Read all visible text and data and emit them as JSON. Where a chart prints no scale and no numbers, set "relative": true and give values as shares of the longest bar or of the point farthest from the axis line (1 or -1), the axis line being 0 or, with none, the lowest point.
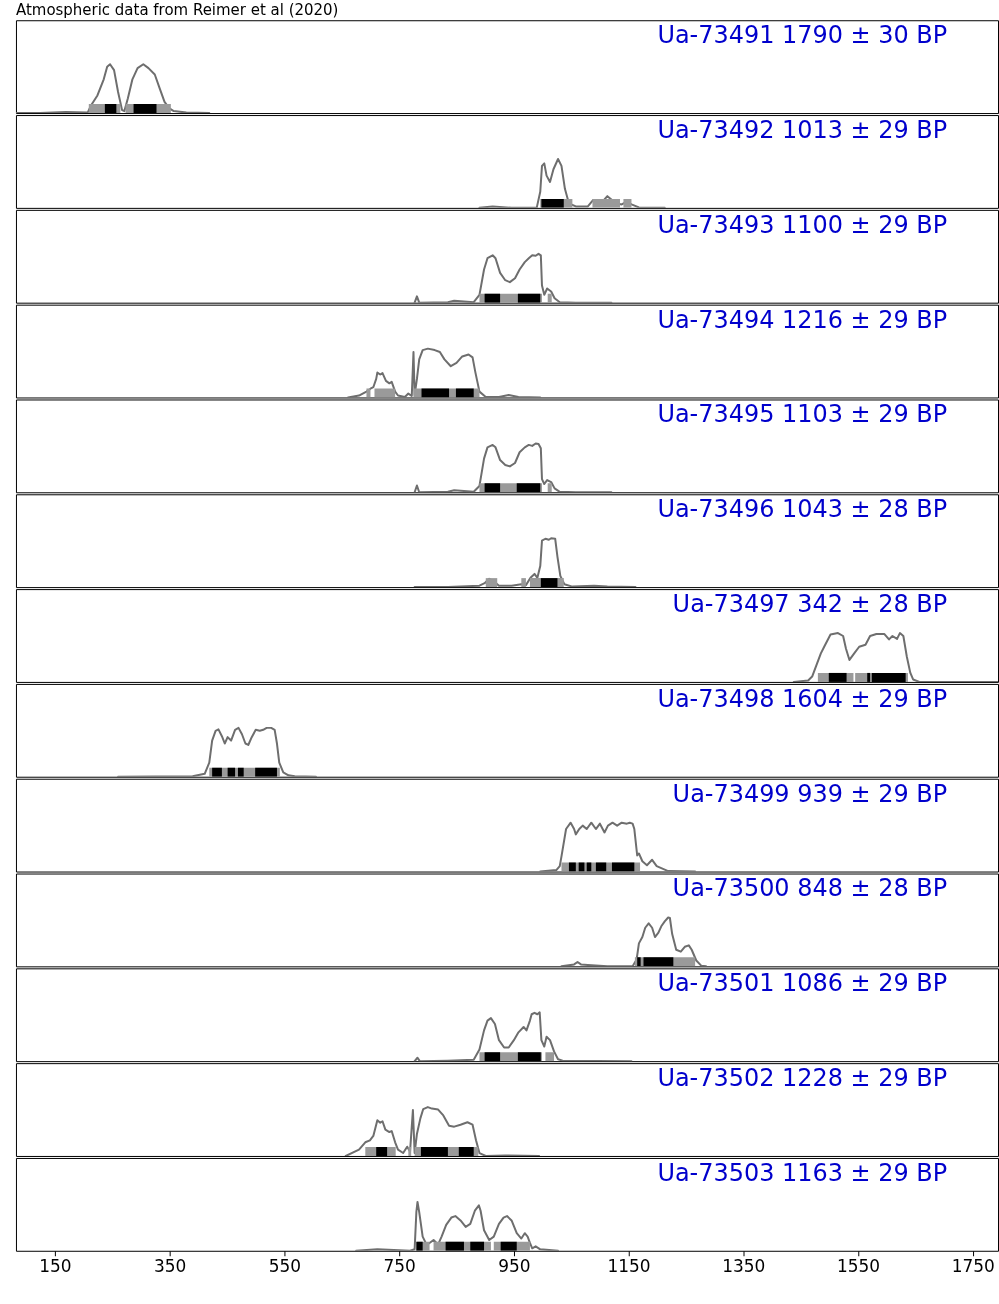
{
  "chart_data": [
    {
      "type": "line",
      "title": "Ua-73491 1790 ± 30 BP",
      "annotations": [
        "Atmospheric data from Reimer et al (2020)"
      ],
      "relative": true,
      "xlim": [
        82,
        1794
      ],
      "tick_labels": false,
      "series": [
        {
          "color": "#6e6e6e",
          "x": [
            82,
            124,
            169,
            207,
            213,
            224,
            235,
            241,
            246,
            253,
            260,
            267,
            271,
            277,
            285,
            294,
            304,
            313,
            324,
            333,
            341,
            349,
            357,
            379,
            419
          ],
          "values": [
            0,
            0,
            0.02,
            0.01,
            0.16,
            0.36,
            0.69,
            0.95,
            1.0,
            0.88,
            0.43,
            0.06,
            0.04,
            0.3,
            0.69,
            0.92,
            1.0,
            0.92,
            0.79,
            0.49,
            0.23,
            0.1,
            0.04,
            0.01,
            0
          ]
        }
      ],
      "bands": [
        {
          "axis": "x",
          "from": 209,
          "to": 264,
          "color": "#9a9a9a"
        },
        {
          "axis": "x",
          "from": 273,
          "to": 352,
          "color": "#9a9a9a"
        },
        {
          "axis": "x",
          "from": 237,
          "to": 257,
          "color": "#000000"
        },
        {
          "axis": "x",
          "from": 287,
          "to": 327,
          "color": "#000000"
        }
      ]
    },
    {
      "type": "line",
      "title": "Ua-73492 1013 ± 29 BP",
      "relative": true,
      "xlim": [
        82,
        1794
      ],
      "tick_labels": false,
      "series": [
        {
          "color": "#6e6e6e",
          "x": [
            890,
            913,
            946,
            990,
            996,
            999,
            1003,
            1007,
            1013,
            1019,
            1027,
            1033,
            1039,
            1046,
            1058,
            1079,
            1088,
            1096,
            1104,
            1113,
            1121,
            1130,
            1138,
            1147,
            1155,
            1168,
            1213
          ],
          "values": [
            0,
            0.03,
            0,
            0.01,
            0.33,
            0.86,
            0.91,
            0.66,
            0.53,
            0.79,
            1.0,
            0.86,
            0.39,
            0.09,
            0.03,
            0.03,
            0.16,
            0.07,
            0.12,
            0.24,
            0.16,
            0.09,
            0.07,
            0.13,
            0.07,
            0.01,
            0
          ]
        }
      ],
      "bands": [
        {
          "axis": "x",
          "from": 996,
          "to": 1052,
          "color": "#9a9a9a"
        },
        {
          "axis": "x",
          "from": 1087,
          "to": 1135,
          "color": "#9a9a9a"
        },
        {
          "axis": "x",
          "from": 1141,
          "to": 1155,
          "color": "#9a9a9a"
        },
        {
          "axis": "x",
          "from": 998,
          "to": 1037,
          "color": "#000000"
        }
      ]
    },
    {
      "type": "line",
      "title": "Ua-73493 1100 ± 29 BP",
      "relative": true,
      "xlim": [
        82,
        1794
      ],
      "tick_labels": false,
      "series": [
        {
          "color": "#6e6e6e",
          "x": [
            777,
            781,
            785,
            835,
            846,
            880,
            890,
            898,
            904,
            913,
            918,
            926,
            935,
            943,
            952,
            960,
            969,
            976,
            982,
            988,
            993,
            997,
            999,
            1003,
            1008,
            1015,
            1021,
            1030,
            1058,
            1120
          ],
          "values": [
            0,
            0.13,
            0,
            0.01,
            0.04,
            0.01,
            0.16,
            0.68,
            0.91,
            0.97,
            0.91,
            0.61,
            0.46,
            0.42,
            0.5,
            0.68,
            0.83,
            0.91,
            0.97,
            0.96,
            1.0,
            0.97,
            0.35,
            0.16,
            0.29,
            0.23,
            0.09,
            0.01,
            0,
            0
          ]
        }
      ],
      "bands": [
        {
          "axis": "x",
          "from": 890,
          "to": 999,
          "color": "#9a9a9a"
        },
        {
          "axis": "x",
          "from": 1009,
          "to": 1016,
          "color": "#9a9a9a"
        },
        {
          "axis": "x",
          "from": 899,
          "to": 926,
          "color": "#000000"
        },
        {
          "axis": "x",
          "from": 957,
          "to": 996,
          "color": "#000000"
        }
      ]
    },
    {
      "type": "line",
      "title": "Ua-73494 1216 ± 29 BP",
      "relative": true,
      "xlim": [
        82,
        1794
      ],
      "tick_labels": false,
      "series": [
        {
          "color": "#6e6e6e",
          "x": [
            661,
            680,
            693,
            700,
            705,
            710,
            712,
            717,
            721,
            727,
            733,
            737,
            743,
            748,
            760,
            766,
            772,
            775,
            777,
            781,
            785,
            791,
            800,
            812,
            821,
            829,
            840,
            850,
            860,
            871,
            878,
            883,
            890,
            901,
            924,
            941,
            958,
            996
          ],
          "values": [
            0,
            0.04,
            0.12,
            0.18,
            0.21,
            0.38,
            0.51,
            0.47,
            0.5,
            0.34,
            0.29,
            0.32,
            0.12,
            0.04,
            0.01,
            0.08,
            0.03,
            0.93,
            0.05,
            0.38,
            0.78,
            0.97,
            1.0,
            0.97,
            0.93,
            0.78,
            0.64,
            0.71,
            0.84,
            0.88,
            0.82,
            0.51,
            0.12,
            0.01,
            0.01,
            0.05,
            0.01,
            0
          ]
        }
      ],
      "bands": [
        {
          "axis": "x",
          "from": 693,
          "to": 700,
          "color": "#9a9a9a"
        },
        {
          "axis": "x",
          "from": 707,
          "to": 743,
          "color": "#9a9a9a"
        },
        {
          "axis": "x",
          "from": 775,
          "to": 890,
          "color": "#9a9a9a"
        },
        {
          "axis": "x",
          "from": 789,
          "to": 837,
          "color": "#000000"
        },
        {
          "axis": "x",
          "from": 849,
          "to": 880,
          "color": "#000000"
        }
      ]
    },
    {
      "type": "line",
      "title": "Ua-73495 1103 ± 29 BP",
      "relative": true,
      "xlim": [
        82,
        1794
      ],
      "tick_labels": false,
      "series": [
        {
          "color": "#6e6e6e",
          "x": [
            777,
            781,
            785,
            835,
            846,
            880,
            890,
            898,
            904,
            913,
            918,
            926,
            935,
            943,
            952,
            960,
            969,
            976,
            982,
            988,
            993,
            997,
            999,
            1003,
            1008,
            1015,
            1021,
            1030,
            1058,
            1120
          ],
          "values": [
            0,
            0.14,
            0,
            0.01,
            0.04,
            0.01,
            0.13,
            0.69,
            0.92,
            0.97,
            0.92,
            0.66,
            0.56,
            0.53,
            0.6,
            0.82,
            0.92,
            0.97,
            0.95,
            1.0,
            0.99,
            0.9,
            0.27,
            0.17,
            0.25,
            0.21,
            0.08,
            0.01,
            0,
            0
          ]
        }
      ],
      "bands": [
        {
          "axis": "x",
          "from": 890,
          "to": 999,
          "color": "#9a9a9a"
        },
        {
          "axis": "x",
          "from": 1009,
          "to": 1016,
          "color": "#9a9a9a"
        },
        {
          "axis": "x",
          "from": 899,
          "to": 926,
          "color": "#000000"
        },
        {
          "axis": "x",
          "from": 955,
          "to": 996,
          "color": "#000000"
        }
      ]
    },
    {
      "type": "line",
      "title": "Ua-73496 1043 ± 28 BP",
      "relative": true,
      "xlim": [
        82,
        1794
      ],
      "tick_labels": false,
      "series": [
        {
          "color": "#6e6e6e",
          "x": [
            777,
            835,
            890,
            899,
            907,
            915,
            924,
            946,
            963,
            971,
            979,
            986,
            991,
            996,
            999,
            1005,
            1011,
            1015,
            1022,
            1026,
            1031,
            1038,
            1052,
            1090,
            1113,
            1162
          ],
          "values": [
            0,
            0,
            0.03,
            0.08,
            0.17,
            0.12,
            0.03,
            0.03,
            0.06,
            0.04,
            0.19,
            0.27,
            0.19,
            0.43,
            0.95,
            0.99,
            0.97,
            1.0,
            0.99,
            0.62,
            0.23,
            0.06,
            0.01,
            0.03,
            0.01,
            0
          ]
        }
      ],
      "bands": [
        {
          "axis": "x",
          "from": 901,
          "to": 921,
          "color": "#9a9a9a"
        },
        {
          "axis": "x",
          "from": 963,
          "to": 971,
          "color": "#9a9a9a"
        },
        {
          "axis": "x",
          "from": 978,
          "to": 1037,
          "color": "#9a9a9a"
        },
        {
          "axis": "x",
          "from": 997,
          "to": 1026,
          "color": "#000000"
        }
      ]
    },
    {
      "type": "line",
      "title": "Ua-73497 342 ± 28 BP",
      "relative": true,
      "xlim": [
        82,
        1794
      ],
      "tick_labels": false,
      "series": [
        {
          "color": "#6e6e6e",
          "x": [
            1438,
            1463,
            1470,
            1477,
            1485,
            1491,
            1502,
            1515,
            1524,
            1529,
            1535,
            1543,
            1552,
            1563,
            1571,
            1582,
            1596,
            1604,
            1610,
            1618,
            1623,
            1629,
            1635,
            1641,
            1646,
            1657,
            1794
          ],
          "values": [
            0,
            0.03,
            0.11,
            0.33,
            0.58,
            0.72,
            0.97,
            1.0,
            0.94,
            0.68,
            0.45,
            0.58,
            0.72,
            0.76,
            0.94,
            0.98,
            0.98,
            0.87,
            0.94,
            0.88,
            1.0,
            0.94,
            0.52,
            0.19,
            0.05,
            0,
            0
          ]
        }
      ],
      "bands": [
        {
          "axis": "x",
          "from": 1480,
          "to": 1542,
          "color": "#9a9a9a"
        },
        {
          "axis": "x",
          "from": 1545,
          "to": 1637,
          "color": "#9a9a9a"
        },
        {
          "axis": "x",
          "from": 1499,
          "to": 1530,
          "color": "#000000"
        },
        {
          "axis": "x",
          "from": 1566,
          "to": 1571,
          "color": "#000000"
        },
        {
          "axis": "x",
          "from": 1574,
          "to": 1633,
          "color": "#000000"
        }
      ]
    },
    {
      "type": "line",
      "title": "Ua-73498 1604 ± 29 BP",
      "relative": true,
      "xlim": [
        82,
        1794
      ],
      "tick_labels": false,
      "series": [
        {
          "color": "#6e6e6e",
          "x": [
            260,
            390,
            411,
            419,
            424,
            430,
            435,
            441,
            446,
            451,
            457,
            464,
            470,
            476,
            482,
            487,
            493,
            500,
            507,
            513,
            519,
            527,
            533,
            537,
            541,
            548,
            557,
            568,
            605
          ],
          "values": [
            0,
            0.01,
            0.06,
            0.29,
            0.74,
            0.94,
            0.97,
            0.83,
            0.68,
            0.81,
            0.74,
            0.96,
            1.0,
            0.87,
            0.68,
            0.65,
            0.81,
            0.96,
            0.94,
            0.96,
            1.0,
            1.0,
            0.96,
            0.68,
            0.29,
            0.09,
            0.03,
            0.01,
            0
          ]
        }
      ],
      "bands": [
        {
          "axis": "x",
          "from": 419,
          "to": 542,
          "color": "#9a9a9a"
        },
        {
          "axis": "x",
          "from": 424,
          "to": 441,
          "color": "#000000"
        },
        {
          "axis": "x",
          "from": 451,
          "to": 464,
          "color": "#000000"
        },
        {
          "axis": "x",
          "from": 469,
          "to": 479,
          "color": "#000000"
        },
        {
          "axis": "x",
          "from": 499,
          "to": 537,
          "color": "#000000"
        }
      ]
    },
    {
      "type": "line",
      "title": "Ua-73499 939 ± 29 BP",
      "relative": true,
      "xlim": [
        82,
        1794
      ],
      "tick_labels": false,
      "series": [
        {
          "color": "#6e6e6e",
          "x": [
            996,
            1024,
            1030,
            1033,
            1041,
            1049,
            1055,
            1058,
            1064,
            1070,
            1077,
            1085,
            1093,
            1100,
            1108,
            1114,
            1122,
            1130,
            1138,
            1147,
            1152,
            1157,
            1160,
            1165,
            1168,
            1174,
            1182,
            1191,
            1199,
            1207,
            1219,
            1266
          ],
          "values": [
            0,
            0.03,
            0.11,
            0.31,
            0.87,
            1.0,
            0.87,
            0.76,
            0.87,
            0.94,
            0.87,
            1.0,
            0.87,
            0.98,
            0.8,
            0.94,
            1.0,
            0.94,
            1.0,
            0.98,
            1.0,
            0.98,
            0.87,
            0.33,
            0.37,
            0.21,
            0.13,
            0.24,
            0.11,
            0.07,
            0.01,
            0
          ]
        }
      ],
      "bands": [
        {
          "axis": "x",
          "from": 1033,
          "to": 1170,
          "color": "#9a9a9a"
        },
        {
          "axis": "x",
          "from": 1046,
          "to": 1058,
          "color": "#000000"
        },
        {
          "axis": "x",
          "from": 1063,
          "to": 1073,
          "color": "#000000"
        },
        {
          "axis": "x",
          "from": 1077,
          "to": 1085,
          "color": "#000000"
        },
        {
          "axis": "x",
          "from": 1093,
          "to": 1111,
          "color": "#000000"
        },
        {
          "axis": "x",
          "from": 1121,
          "to": 1160,
          "color": "#000000"
        }
      ]
    },
    {
      "type": "line",
      "title": "Ua-73500 848 ± 28 BP",
      "relative": true,
      "xlim": [
        82,
        1794
      ],
      "tick_labels": false,
      "series": [
        {
          "color": "#6e6e6e",
          "x": [
            1033,
            1055,
            1061,
            1067,
            1079,
            1113,
            1157,
            1164,
            1168,
            1174,
            1179,
            1185,
            1191,
            1196,
            1202,
            1207,
            1213,
            1219,
            1222,
            1226,
            1233,
            1241,
            1248,
            1255,
            1260,
            1268,
            1277,
            1285
          ],
          "values": [
            0,
            0.04,
            0.09,
            0.04,
            0.03,
            0,
            0,
            0.14,
            0.47,
            0.6,
            0.79,
            0.88,
            0.79,
            0.6,
            0.69,
            0.82,
            0.92,
            1.0,
            0.99,
            0.66,
            0.34,
            0.3,
            0.4,
            0.43,
            0.34,
            0.12,
            0.01,
            0
          ]
        }
      ],
      "bands": [
        {
          "axis": "x",
          "from": 1161,
          "to": 1266,
          "color": "#9a9a9a"
        },
        {
          "axis": "x",
          "from": 1165,
          "to": 1171,
          "color": "#000000"
        },
        {
          "axis": "x",
          "from": 1176,
          "to": 1228,
          "color": "#000000"
        }
      ]
    },
    {
      "type": "line",
      "title": "Ua-73501 1086 ± 29 BP",
      "relative": true,
      "xlim": [
        82,
        1794
      ],
      "tick_labels": false,
      "series": [
        {
          "color": "#6e6e6e",
          "x": [
            777,
            782,
            786,
            835,
            880,
            890,
            898,
            904,
            910,
            917,
            924,
            933,
            941,
            950,
            958,
            967,
            972,
            978,
            981,
            986,
            991,
            995,
            998,
            1003,
            1007,
            1013,
            1020,
            1027,
            1035,
            1155
          ],
          "values": [
            0,
            0.07,
            0,
            0.01,
            0.03,
            0.24,
            0.63,
            0.83,
            0.88,
            0.76,
            0.43,
            0.28,
            0.28,
            0.43,
            0.59,
            0.7,
            0.63,
            0.83,
            0.96,
            0.99,
            0.96,
            1.0,
            0.43,
            0.3,
            0.5,
            0.43,
            0.2,
            0.04,
            0.01,
            0
          ]
        }
      ],
      "bands": [
        {
          "axis": "x",
          "from": 890,
          "to": 999,
          "color": "#9a9a9a"
        },
        {
          "axis": "x",
          "from": 1005,
          "to": 1020,
          "color": "#9a9a9a"
        },
        {
          "axis": "x",
          "from": 899,
          "to": 926,
          "color": "#000000"
        },
        {
          "axis": "x",
          "from": 957,
          "to": 997,
          "color": "#000000"
        }
      ]
    },
    {
      "type": "line",
      "title": "Ua-73502 1228 ± 29 BP",
      "relative": true,
      "xlim": [
        82,
        1794
      ],
      "tick_labels": false,
      "series": [
        {
          "color": "#6e6e6e",
          "x": [
            657,
            680,
            691,
            699,
            705,
            710,
            712,
            717,
            721,
            726,
            733,
            737,
            743,
            748,
            757,
            764,
            769,
            774,
            777,
            781,
            787,
            792,
            800,
            807,
            818,
            827,
            837,
            846,
            857,
            869,
            878,
            884,
            890,
            901,
            935,
            994
          ],
          "values": [
            0,
            0.13,
            0.28,
            0.32,
            0.41,
            0.64,
            0.73,
            0.68,
            0.71,
            0.54,
            0.49,
            0.51,
            0.28,
            0.13,
            0.06,
            0.19,
            0.09,
            0.94,
            0.06,
            0.45,
            0.77,
            0.96,
            1.0,
            0.97,
            0.95,
            0.83,
            0.62,
            0.6,
            0.64,
            0.69,
            0.64,
            0.32,
            0.06,
            0,
            0.01,
            0
          ]
        }
      ],
      "bands": [
        {
          "axis": "x",
          "from": 691,
          "to": 744,
          "color": "#9a9a9a"
        },
        {
          "axis": "x",
          "from": 766,
          "to": 771,
          "color": "#9a9a9a"
        },
        {
          "axis": "x",
          "from": 777,
          "to": 888,
          "color": "#9a9a9a"
        },
        {
          "axis": "x",
          "from": 710,
          "to": 729,
          "color": "#000000"
        },
        {
          "axis": "x",
          "from": 788,
          "to": 835,
          "color": "#000000"
        },
        {
          "axis": "x",
          "from": 854,
          "to": 880,
          "color": "#000000"
        }
      ]
    },
    {
      "type": "line",
      "title": "Ua-73503 1163 ± 29 BP",
      "relative": true,
      "xlim": [
        82,
        1794
      ],
      "xticks": [
        150,
        350,
        550,
        750,
        950,
        1150,
        1350,
        1550,
        1750
      ],
      "tick_labels": "x",
      "series": [
        {
          "color": "#6e6e6e",
          "x": [
            675,
            712,
            769,
            777,
            780,
            782,
            785,
            791,
            798,
            803,
            810,
            818,
            824,
            832,
            841,
            848,
            857,
            866,
            874,
            882,
            889,
            892,
            898,
            907,
            915,
            924,
            932,
            938,
            946,
            955,
            963,
            969,
            974,
            978,
            982,
            988,
            996,
            1027
          ],
          "values": [
            0,
            0.03,
            0,
            0.03,
            0.79,
            1.0,
            0.79,
            0.29,
            0.12,
            0.16,
            0.22,
            0.13,
            0.29,
            0.53,
            0.68,
            0.71,
            0.62,
            0.49,
            0.55,
            0.82,
            0.93,
            0.82,
            0.42,
            0.22,
            0.29,
            0.55,
            0.68,
            0.71,
            0.62,
            0.36,
            0.25,
            0.36,
            0.29,
            0.16,
            0.05,
            0.09,
            0.03,
            0
          ]
        }
      ],
      "bands": [
        {
          "axis": "x",
          "from": 780,
          "to": 803,
          "color": "#9a9a9a"
        },
        {
          "axis": "x",
          "from": 810,
          "to": 910,
          "color": "#9a9a9a"
        },
        {
          "axis": "x",
          "from": 915,
          "to": 978,
          "color": "#9a9a9a"
        },
        {
          "axis": "x",
          "from": 780,
          "to": 791,
          "color": "#000000"
        },
        {
          "axis": "x",
          "from": 831,
          "to": 863,
          "color": "#000000"
        },
        {
          "axis": "x",
          "from": 874,
          "to": 898,
          "color": "#000000"
        },
        {
          "axis": "x",
          "from": 927,
          "to": 955,
          "color": "#000000"
        }
      ]
    }
  ]
}
